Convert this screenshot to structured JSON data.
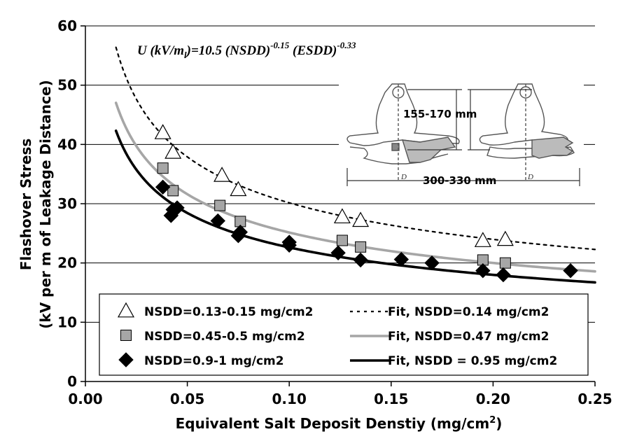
{
  "chart_data": {
    "type": "scatter",
    "ylabel_line1": "Flashover Stress",
    "ylabel_line2": "(kV per m of Leakage Distance)",
    "xlabel": "Equivalent Salt Deposit Denstiy (mg/cm",
    "xlabel_sup": "2",
    "xlabel_end": ")",
    "xlim": [
      0,
      0.25
    ],
    "ylim": [
      0,
      60
    ],
    "x_ticks": [
      "0.00",
      "0.05",
      "0.10",
      "0.15",
      "0.20",
      "0.25"
    ],
    "y_ticks": [
      "0",
      "10",
      "20",
      "30",
      "40",
      "50",
      "60"
    ],
    "grid": "horizontal",
    "equation": {
      "lhs_prefix": "U (kV/m",
      "lhs_sub": "l",
      "lhs_suffix": ")=10.5 (NSDD)",
      "exp1": "-0.15",
      "mid": " (ESDD)",
      "exp2": "-0.33"
    },
    "inset": {
      "dimension_height": "155-170 mm",
      "dimension_width": "300-330 mm",
      "label_d1": "D",
      "label_d2": "D"
    },
    "legend_position": "bottom-right",
    "series": [
      {
        "name": "NSDD=0.13-0.15 mg/cm2",
        "marker": "triangle",
        "color": "#ffffff",
        "x": [
          0.038,
          0.043,
          0.067,
          0.075,
          0.126,
          0.135,
          0.195,
          0.206
        ],
        "y": [
          42,
          38.7,
          34.8,
          32.4,
          27.8,
          27.2,
          23.8,
          24.0
        ]
      },
      {
        "name": "NSDD=0.45-0.5 mg/cm2",
        "marker": "square",
        "color": "#a6a6a6",
        "x": [
          0.038,
          0.043,
          0.066,
          0.076,
          0.126,
          0.135,
          0.195,
          0.206
        ],
        "y": [
          36.0,
          32.2,
          29.7,
          27.0,
          23.8,
          22.7,
          20.5,
          20.0
        ]
      },
      {
        "name": "NSDD=0.9-1 mg/cm2",
        "marker": "diamond",
        "color": "#000000",
        "x": [
          0.038,
          0.042,
          0.043,
          0.045,
          0.065,
          0.075,
          0.076,
          0.1,
          0.1,
          0.124,
          0.135,
          0.155,
          0.17,
          0.195,
          0.205,
          0.238
        ],
        "y": [
          32.8,
          28.0,
          29.0,
          29.3,
          27.1,
          24.6,
          25.2,
          23.5,
          23.0,
          21.7,
          20.5,
          20.6,
          20.0,
          18.7,
          18.0,
          18.7
        ]
      },
      {
        "name": "Fit, NSDD=0.14 mg/cm2",
        "line": "dotted",
        "color": "#000000",
        "nsdd": 0.14,
        "x_range": [
          0.015,
          0.25
        ]
      },
      {
        "name": "Fit, NSDD=0.47 mg/cm2",
        "line": "solid",
        "color": "#a6a6a6",
        "nsdd": 0.47,
        "x_range": [
          0.015,
          0.25
        ]
      },
      {
        "name": "Fit, NSDD = 0.95 mg/cm2",
        "line": "solid",
        "color": "#000000",
        "nsdd": 0.95,
        "x_range": [
          0.015,
          0.25
        ]
      }
    ]
  }
}
